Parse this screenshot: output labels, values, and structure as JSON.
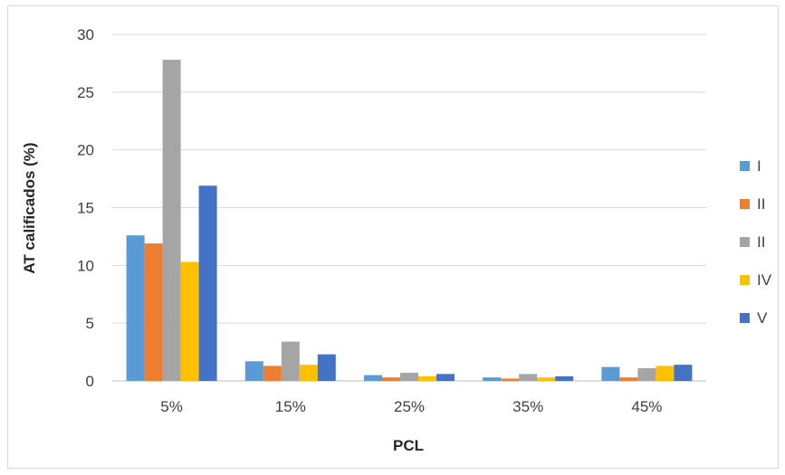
{
  "chart_data": {
    "type": "bar",
    "title": "",
    "xlabel": "PCL",
    "ylabel": "AT calificados (%)",
    "categories": [
      "5%",
      "15%",
      "25%",
      "35%",
      "45%"
    ],
    "ylim": [
      0,
      30
    ],
    "yticks": [
      0,
      5,
      10,
      15,
      20,
      25,
      30
    ],
    "grid": true,
    "legend_position": "right",
    "series": [
      {
        "name": "I",
        "color": "#5b9bd5",
        "values": [
          12.6,
          1.7,
          0.5,
          0.3,
          1.2
        ]
      },
      {
        "name": "II",
        "color": "#ed7d31",
        "values": [
          11.9,
          1.3,
          0.3,
          0.2,
          0.3
        ]
      },
      {
        "name": "II",
        "color": "#a5a5a5",
        "values": [
          27.8,
          3.4,
          0.7,
          0.6,
          1.1
        ]
      },
      {
        "name": "IV",
        "color": "#ffc000",
        "values": [
          10.3,
          1.4,
          0.4,
          0.3,
          1.3
        ]
      },
      {
        "name": "V",
        "color": "#4472c4",
        "values": [
          16.9,
          2.3,
          0.6,
          0.4,
          1.4
        ]
      }
    ]
  }
}
